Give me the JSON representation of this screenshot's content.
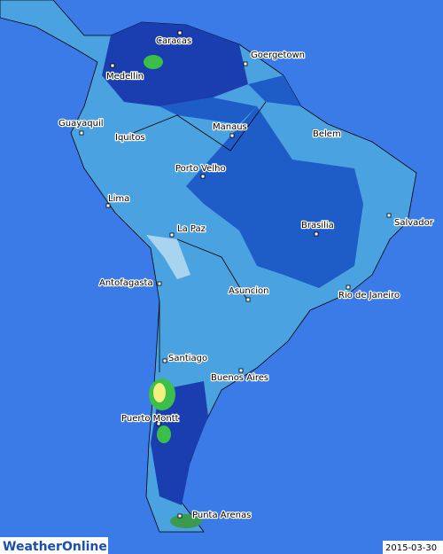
{
  "map": {
    "cities": [
      "Caracas",
      "Goergetown",
      "Medellin",
      "Guayaquil",
      "Iquitos",
      "Manaus",
      "Belem",
      "Porto Velho",
      "Lima",
      "La Paz",
      "Brasilia",
      "Salvador",
      "Antofagasta",
      "Asuncion",
      "Rio de Janeiro",
      "Santiago",
      "Buenos Aires",
      "Puerto Montt",
      "Punta Arenas"
    ],
    "logo": "WeatherOnline",
    "date": "2015-03-30"
  }
}
